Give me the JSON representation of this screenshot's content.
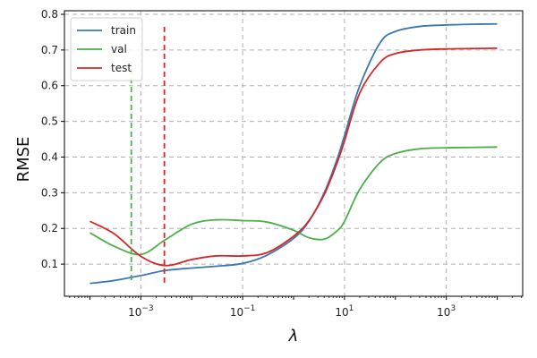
{
  "chart_data": {
    "type": "line",
    "xlabel": "λ",
    "ylabel": "RMSE",
    "xscale": "log",
    "xlim": [
      3.16e-05,
      31623
    ],
    "ylim": [
      0.01,
      0.81
    ],
    "x_ticks": [
      0.001,
      0.1,
      10,
      1000
    ],
    "x_tick_labels": [
      {
        "base": "10",
        "exp": "−3"
      },
      {
        "base": "10",
        "exp": "−1"
      },
      {
        "base": "10",
        "exp": "1"
      },
      {
        "base": "10",
        "exp": "3"
      }
    ],
    "y_ticks": [
      0.1,
      0.2,
      0.3,
      0.4,
      0.5,
      0.6,
      0.7,
      0.8
    ],
    "y_tick_labels": [
      "0.1",
      "0.2",
      "0.3",
      "0.4",
      "0.5",
      "0.6",
      "0.7",
      "0.8"
    ],
    "grid": true,
    "legend_position": "top-left",
    "x": [
      0.0001,
      0.0003,
      0.001,
      0.003,
      0.01,
      0.03,
      0.1,
      0.3,
      1,
      2,
      4,
      7,
      10,
      20,
      50,
      100,
      300,
      1000,
      3000,
      10000
    ],
    "series": [
      {
        "name": "train",
        "color": "#3a78b4",
        "values": [
          0.046,
          0.054,
          0.068,
          0.082,
          0.089,
          0.094,
          0.102,
          0.125,
          0.172,
          0.22,
          0.3,
          0.39,
          0.46,
          0.6,
          0.72,
          0.752,
          0.766,
          0.77,
          0.772,
          0.773
        ]
      },
      {
        "name": "val",
        "color": "#4daf4a",
        "values": [
          0.188,
          0.15,
          0.127,
          0.168,
          0.212,
          0.224,
          0.222,
          0.218,
          0.195,
          0.174,
          0.17,
          0.192,
          0.22,
          0.31,
          0.385,
          0.41,
          0.423,
          0.426,
          0.427,
          0.428
        ]
      },
      {
        "name": "test",
        "color": "#d62728",
        "values": [
          0.22,
          0.185,
          0.122,
          0.096,
          0.113,
          0.123,
          0.123,
          0.132,
          0.178,
          0.222,
          0.295,
          0.38,
          0.445,
          0.58,
          0.665,
          0.69,
          0.7,
          0.703,
          0.704,
          0.705
        ]
      }
    ],
    "vlines": [
      {
        "series": "val",
        "x": 0.00065,
        "y": [
          0.055,
          0.655
        ],
        "color": "#4daf4a"
      },
      {
        "series": "test",
        "x": 0.0029,
        "y": [
          0.048,
          0.765
        ],
        "color": "#d62728"
      }
    ]
  }
}
